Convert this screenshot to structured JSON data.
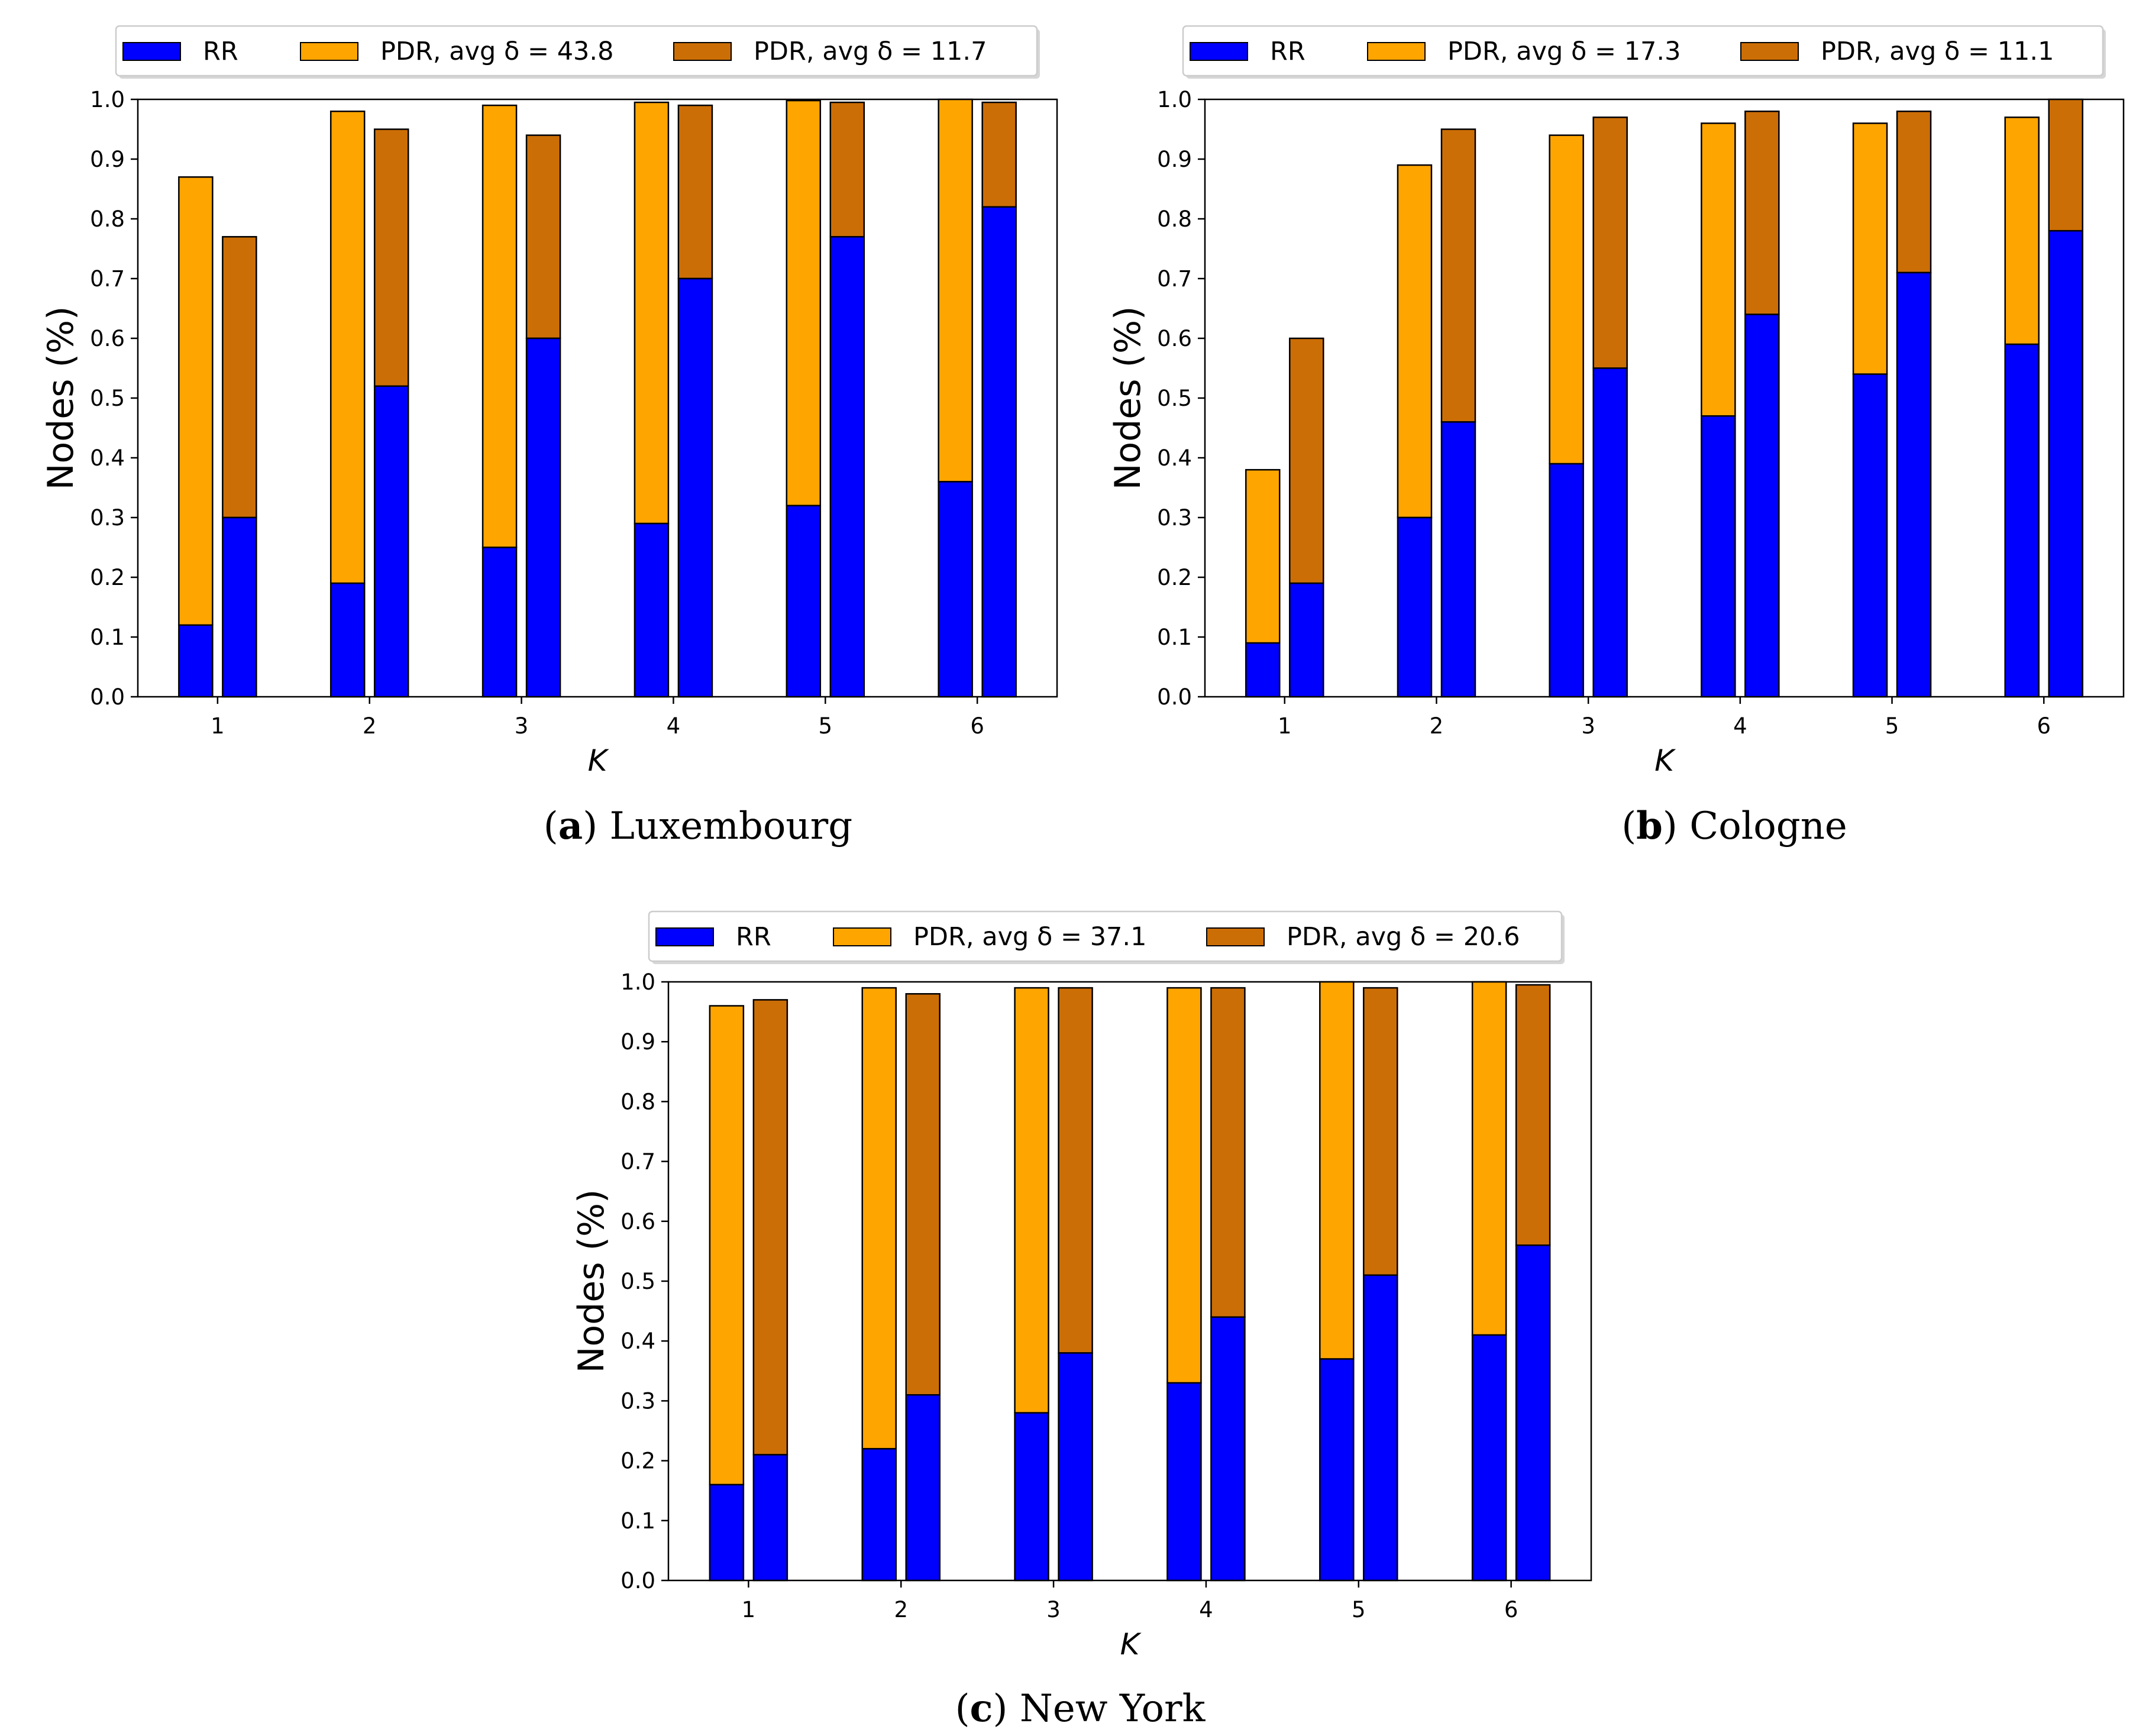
{
  "figure": {
    "colors": {
      "rr": "#0000ff",
      "pdr_high": "#ffa500",
      "pdr_low": "#cc6e06",
      "edge": "#000000"
    }
  },
  "chart_data": [
    {
      "type": "bar",
      "id": "a",
      "caption_letter": "a",
      "caption_text": "Luxembourg",
      "xlabel": "K",
      "ylabel": "Nodes (%)",
      "ylim": [
        0,
        1.0
      ],
      "yticks": [
        "0.0",
        "0.1",
        "0.2",
        "0.3",
        "0.4",
        "0.5",
        "0.6",
        "0.7",
        "0.8",
        "0.9",
        "1.0"
      ],
      "categories": [
        "1",
        "2",
        "3",
        "4",
        "5",
        "6"
      ],
      "legend": [
        "RR",
        "PDR, avg δ = 43.8",
        "PDR, avg δ = 11.7"
      ],
      "series": [
        {
          "name": "PDR, avg δ = 43.8",
          "rr": [
            0.12,
            0.19,
            0.25,
            0.29,
            0.32,
            0.36
          ],
          "pdr": [
            0.87,
            0.98,
            0.99,
            0.995,
            0.998,
            1.0
          ]
        },
        {
          "name": "PDR, avg δ = 11.7",
          "rr": [
            0.3,
            0.52,
            0.6,
            0.7,
            0.77,
            0.82
          ],
          "pdr": [
            0.77,
            0.95,
            0.94,
            0.99,
            0.995,
            0.995
          ]
        }
      ]
    },
    {
      "type": "bar",
      "id": "b",
      "caption_letter": "b",
      "caption_text": "Cologne",
      "xlabel": "K",
      "ylabel": "Nodes (%)",
      "ylim": [
        0,
        1.0
      ],
      "yticks": [
        "0.0",
        "0.1",
        "0.2",
        "0.3",
        "0.4",
        "0.5",
        "0.6",
        "0.7",
        "0.8",
        "0.9",
        "1.0"
      ],
      "categories": [
        "1",
        "2",
        "3",
        "4",
        "5",
        "6"
      ],
      "legend": [
        "RR",
        "PDR, avg δ = 17.3",
        "PDR, avg δ = 11.1"
      ],
      "series": [
        {
          "name": "PDR, avg δ = 17.3",
          "rr": [
            0.09,
            0.3,
            0.39,
            0.47,
            0.54,
            0.59
          ],
          "pdr": [
            0.38,
            0.89,
            0.94,
            0.96,
            0.96,
            0.97
          ]
        },
        {
          "name": "PDR, avg δ = 11.1",
          "rr": [
            0.19,
            0.46,
            0.55,
            0.64,
            0.71,
            0.78
          ],
          "pdr": [
            0.6,
            0.95,
            0.97,
            0.98,
            0.98,
            1.0
          ]
        }
      ]
    },
    {
      "type": "bar",
      "id": "c",
      "caption_letter": "c",
      "caption_text": "New York",
      "xlabel": "K",
      "ylabel": "Nodes (%)",
      "ylim": [
        0,
        1.0
      ],
      "yticks": [
        "0.0",
        "0.1",
        "0.2",
        "0.3",
        "0.4",
        "0.5",
        "0.6",
        "0.7",
        "0.8",
        "0.9",
        "1.0"
      ],
      "categories": [
        "1",
        "2",
        "3",
        "4",
        "5",
        "6"
      ],
      "legend": [
        "RR",
        "PDR, avg δ = 37.1",
        "PDR, avg δ = 20.6"
      ],
      "series": [
        {
          "name": "PDR, avg δ = 37.1",
          "rr": [
            0.16,
            0.22,
            0.28,
            0.33,
            0.37,
            0.41
          ],
          "pdr": [
            0.96,
            0.99,
            0.99,
            0.99,
            1.0,
            1.0
          ]
        },
        {
          "name": "PDR, avg δ = 20.6",
          "rr": [
            0.21,
            0.31,
            0.38,
            0.44,
            0.51,
            0.56
          ],
          "pdr": [
            0.97,
            0.98,
            0.99,
            0.99,
            0.99,
            0.995
          ]
        }
      ]
    }
  ]
}
